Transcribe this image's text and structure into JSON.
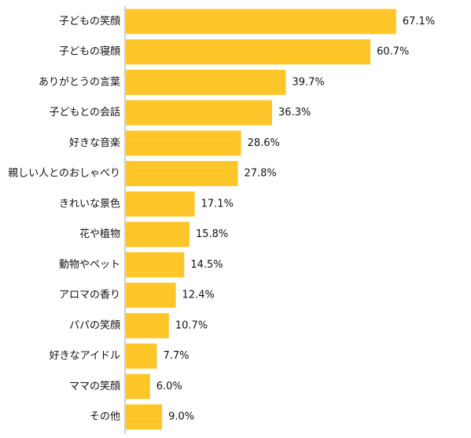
{
  "chart_data": {
    "type": "bar",
    "orientation": "horizontal",
    "categories": [
      "子どもの笑顔",
      "子どもの寝顔",
      "ありがとうの言葉",
      "子どもとの会話",
      "好きな音楽",
      "親しい人とのおしゃべり",
      "きれいな景色",
      "花や植物",
      "動物やペット",
      "アロマの香り",
      "パパの笑顔",
      "好きなアイドル",
      "ママの笑顔",
      "その他"
    ],
    "values": [
      67.1,
      60.7,
      39.7,
      36.3,
      28.6,
      27.8,
      17.1,
      15.8,
      14.5,
      12.4,
      10.7,
      7.7,
      6.0,
      9.0
    ],
    "value_labels": [
      "67.1%",
      "60.7%",
      "39.7%",
      "36.3%",
      "28.6%",
      "27.8%",
      "17.1%",
      "15.8%",
      "14.5%",
      "12.4%",
      "10.7%",
      "7.7%",
      "6.0%",
      "9.0%"
    ],
    "title": "",
    "xlabel": "",
    "ylabel": "",
    "xlim": [
      0,
      100
    ],
    "grid": false,
    "legend": "none",
    "colors": {
      "bar": "#FFC629",
      "axis": "#A0A0A0",
      "text": "#111111"
    }
  }
}
